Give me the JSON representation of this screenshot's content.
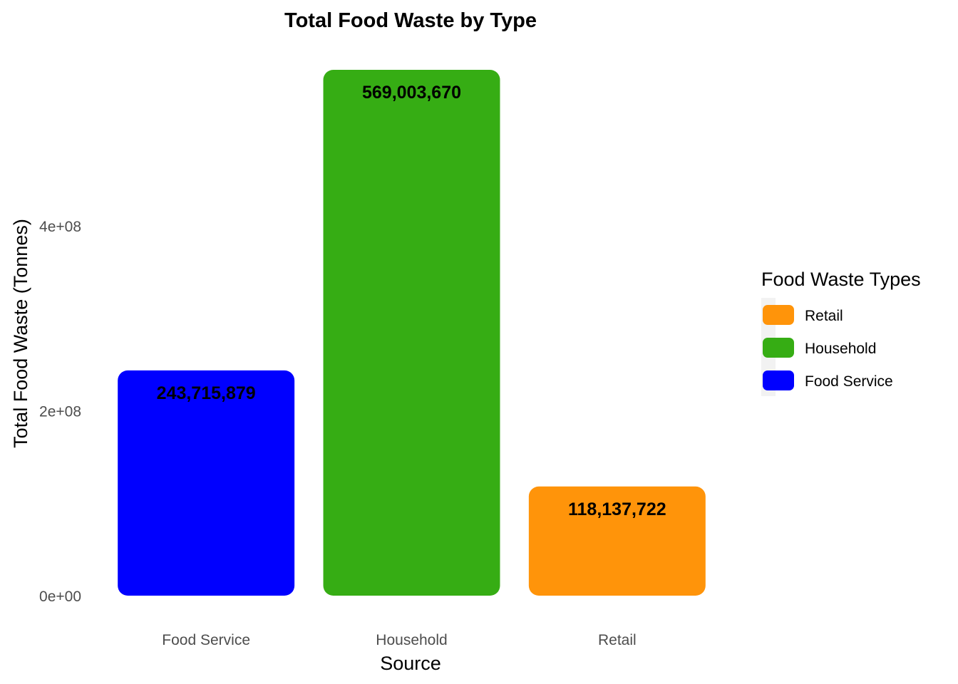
{
  "chart_data": {
    "type": "bar",
    "title": "Total Food Waste by Type",
    "xlabel": "Source",
    "ylabel": "Total Food Waste (Tonnes)",
    "categories": [
      "Food Service",
      "Household",
      "Retail"
    ],
    "values": [
      243715879,
      569003670,
      118137722
    ],
    "value_labels": [
      "243,715,879",
      "569,003,670",
      "118,137,722"
    ],
    "colors": [
      "#0000FF",
      "#36AD14",
      "#FF940A"
    ],
    "y_ticks": [
      {
        "value": 0,
        "label": "0e+00"
      },
      {
        "value": 200000000,
        "label": "2e+08"
      },
      {
        "value": 400000000,
        "label": "4e+08"
      }
    ],
    "ylim": [
      0,
      569003670
    ],
    "grid": false,
    "legend": {
      "title": "Food Waste Types",
      "placement": "right",
      "entries": [
        {
          "label": "Retail",
          "color": "#FF940A"
        },
        {
          "label": "Household",
          "color": "#36AD14"
        },
        {
          "label": "Food Service",
          "color": "#0000FF"
        }
      ]
    }
  }
}
